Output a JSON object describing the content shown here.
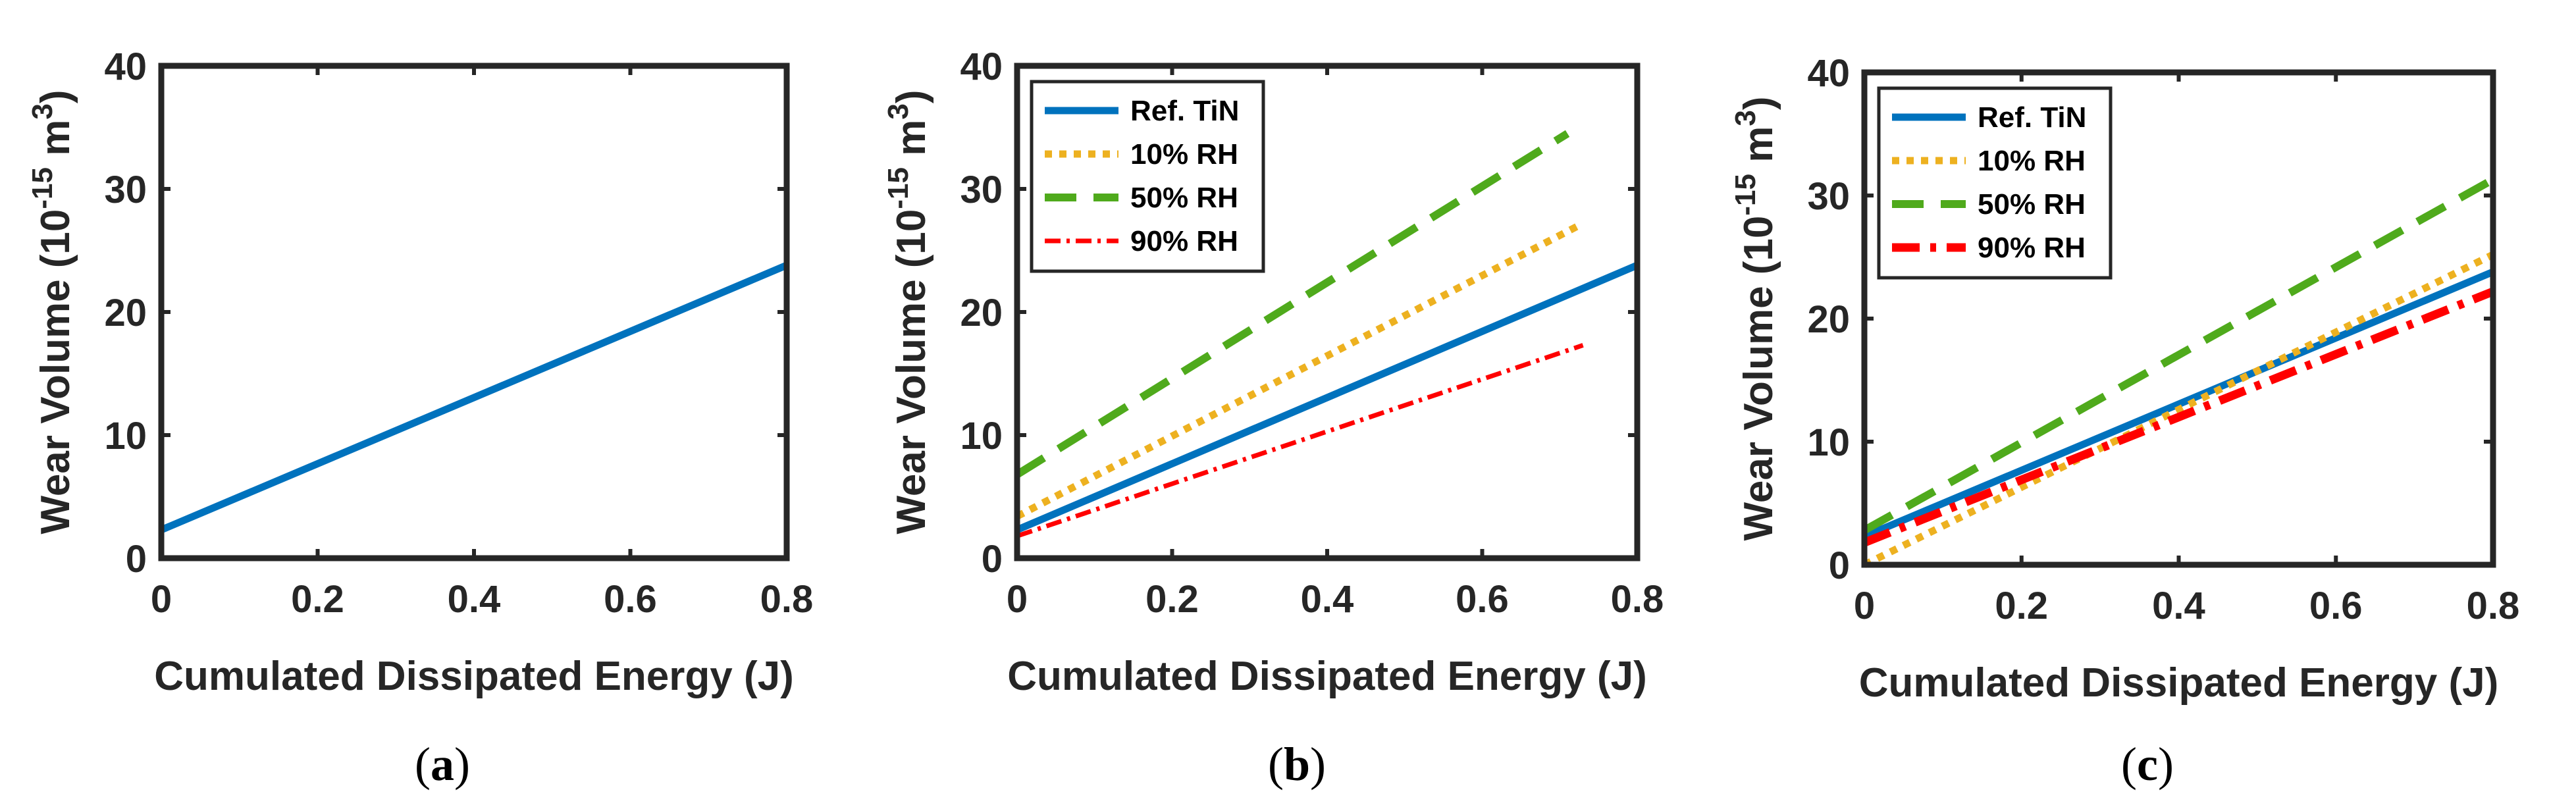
{
  "chart_data": [
    {
      "type": "line",
      "caption_letter": "a",
      "xlabel": "Cumulated Dissipated Energy (J)",
      "ylabel": "Wear Volume (10",
      "ylabel_exp": "-15",
      "ylabel_unit": " m",
      "ylabel_unit_exp": "3",
      "ylabel_close": ")",
      "xlim": [
        0,
        0.8
      ],
      "ylim": [
        0,
        40
      ],
      "xticks": [
        "0",
        "0.2",
        "0.4",
        "0.6",
        "0.8"
      ],
      "yticks": [
        "0",
        "10",
        "20",
        "30",
        "40"
      ],
      "grid": false,
      "legend": null,
      "series": [
        {
          "name": "",
          "color": "#0072BD",
          "style": "solid",
          "x": [
            0,
            0.8
          ],
          "y": [
            2.3,
            23.8
          ]
        }
      ]
    },
    {
      "type": "line",
      "caption_letter": "b",
      "xlabel": "Cumulated Dissipated Energy (J)",
      "ylabel": "Wear Volume (10",
      "ylabel_exp": "-15",
      "ylabel_unit": " m",
      "ylabel_unit_exp": "3",
      "ylabel_close": ")",
      "xlim": [
        0,
        0.8
      ],
      "ylim": [
        0,
        40
      ],
      "xticks": [
        "0",
        "0.2",
        "0.4",
        "0.6",
        "0.8"
      ],
      "yticks": [
        "0",
        "10",
        "20",
        "30",
        "40"
      ],
      "grid": false,
      "legend": "top-left",
      "series": [
        {
          "name": "Ref. TiN",
          "color": "#0072BD",
          "style": "solid",
          "x": [
            0,
            0.8
          ],
          "y": [
            2.3,
            23.8
          ]
        },
        {
          "name": "10% RH",
          "color": "#EDB120",
          "style": "dotted",
          "x": [
            0,
            0.73
          ],
          "y": [
            3.4,
            27.2
          ]
        },
        {
          "name": "50% RH",
          "color": "#4FAA1C",
          "style": "dashed",
          "x": [
            0,
            0.71
          ],
          "y": [
            6.8,
            34.5
          ]
        },
        {
          "name": "90% RH",
          "color": "#FF0000",
          "style": "dashdot",
          "x": [
            0,
            0.73
          ],
          "y": [
            1.8,
            17.3
          ]
        }
      ]
    },
    {
      "type": "line",
      "caption_letter": "c",
      "xlabel": "Cumulated Dissipated Energy (J)",
      "ylabel": "Wear Volume (10",
      "ylabel_exp": "-15",
      "ylabel_unit": " m",
      "ylabel_unit_exp": "3",
      "ylabel_close": ")",
      "xlim": [
        0,
        0.8
      ],
      "ylim": [
        0,
        40
      ],
      "xticks": [
        "0",
        "0.2",
        "0.4",
        "0.6",
        "0.8"
      ],
      "yticks": [
        "0",
        "10",
        "20",
        "30",
        "40"
      ],
      "grid": false,
      "legend": "top-left",
      "series": [
        {
          "name": "Ref. TiN",
          "color": "#0072BD",
          "style": "solid",
          "x": [
            0,
            0.8
          ],
          "y": [
            2.3,
            23.8
          ]
        },
        {
          "name": "10% RH",
          "color": "#EDB120",
          "style": "dotted",
          "x": [
            0,
            0.8
          ],
          "y": [
            0.0,
            25.2
          ]
        },
        {
          "name": "50% RH",
          "color": "#4FAA1C",
          "style": "dashed",
          "x": [
            0,
            0.8
          ],
          "y": [
            2.8,
            31.3
          ]
        },
        {
          "name": "90% RH",
          "color": "#FF0000",
          "style": "dashdot-thick",
          "x": [
            0,
            0.8
          ],
          "y": [
            1.8,
            22.2
          ]
        }
      ]
    }
  ]
}
